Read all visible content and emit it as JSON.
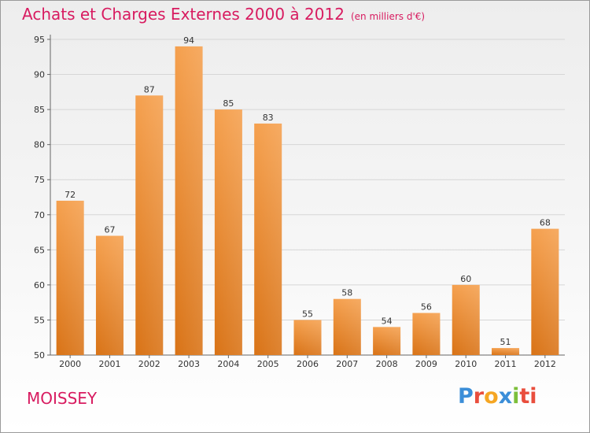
{
  "chart_data": {
    "type": "bar",
    "title": "Achats et Charges Externes 2000 à 2012",
    "subtitle": "(en milliers d'€)",
    "categories": [
      "2000",
      "2001",
      "2002",
      "2003",
      "2004",
      "2005",
      "2006",
      "2007",
      "2008",
      "2009",
      "2010",
      "2011",
      "2012"
    ],
    "values": [
      72,
      67,
      87,
      94,
      85,
      83,
      55,
      58,
      54,
      56,
      60,
      51,
      68
    ],
    "ylim": [
      50,
      95
    ],
    "yticks": [
      50,
      55,
      60,
      65,
      70,
      75,
      80,
      85,
      90,
      95
    ],
    "grid": true,
    "bar_color_top": "#f5a04e",
    "bar_color_bottom": "#d97316"
  },
  "footer": {
    "town": "MOISSEY",
    "logo_letters": [
      "P",
      "r",
      "o",
      "x",
      "i",
      "ti"
    ]
  }
}
